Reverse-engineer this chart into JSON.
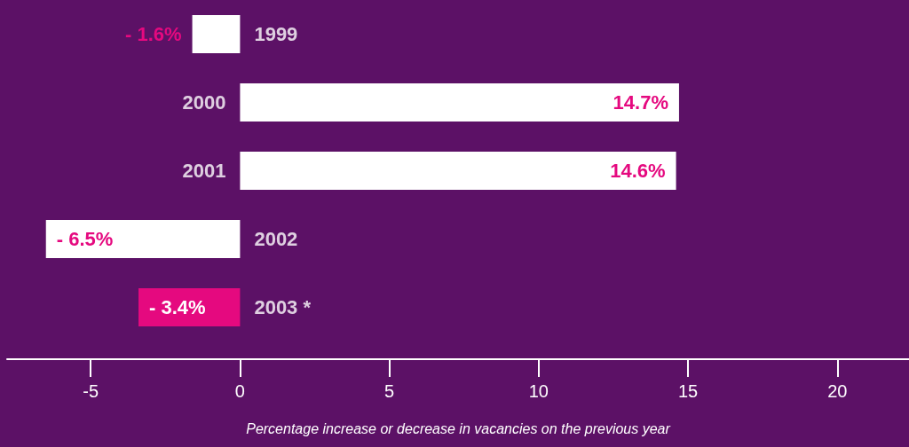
{
  "chart_data": {
    "type": "bar",
    "orientation": "horizontal",
    "xlabel": "Percentage increase or decrease in vacancies on the previous year",
    "categories": [
      "1999",
      "2000",
      "2001",
      "2002",
      "2003 *"
    ],
    "values": [
      -1.6,
      14.7,
      14.6,
      -6.5,
      -3.4
    ],
    "value_labels": [
      "- 1.6%",
      "14.7%",
      "14.6%",
      "- 6.5%",
      "- 3.4%"
    ],
    "colors": [
      "#ffffff",
      "#ffffff",
      "#ffffff",
      "#ffffff",
      "#e5097f"
    ],
    "xlim": [
      -7.8,
      22.4
    ],
    "xticks": [
      -5,
      0,
      5,
      10,
      15,
      20
    ]
  }
}
